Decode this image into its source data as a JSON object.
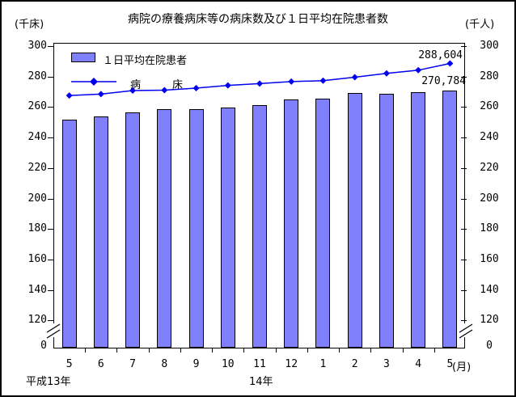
{
  "header": {
    "title": "病院の療養病床等の病床数及び１日平均在院患者数",
    "left_unit": "(千床)",
    "right_unit": "(千人)"
  },
  "legend": {
    "bar_label": "１日平均在院患者",
    "line_label": "病　　　床"
  },
  "chart_data": {
    "type": "bar+line combo",
    "title": "病院の療養病床等の病床数及び１日平均在院患者数",
    "categories": [
      "5",
      "6",
      "7",
      "8",
      "9",
      "10",
      "11",
      "12",
      "1",
      "2",
      "3",
      "4",
      "5"
    ],
    "series": [
      {
        "name": "１日平均在院患者",
        "type": "bar",
        "unit": "千人",
        "values": [
          251.5,
          254.0,
          256.7,
          258.8,
          258.8,
          259.7,
          261.4,
          264.8,
          265.3,
          269.0,
          268.7,
          269.8,
          270.784
        ]
      },
      {
        "name": "病床",
        "type": "line",
        "unit": "千床",
        "values": [
          267.6,
          268.5,
          270.8,
          271.1,
          272.4,
          274.2,
          275.4,
          276.7,
          277.3,
          279.6,
          282.1,
          284.2,
          288.604
        ]
      }
    ],
    "y_axis": {
      "ticks": [
        300,
        280,
        260,
        240,
        220,
        200,
        180,
        160,
        140,
        120
      ],
      "zero": "0",
      "axis_break_between": [
        0,
        120
      ],
      "left_unit": "千床",
      "right_unit": "千人"
    },
    "x_axis": {
      "unit_label": "(月)",
      "era_left": "平成13年",
      "era_right": "14年"
    },
    "annotations": [
      {
        "text": "288,604",
        "series": "病床",
        "at_category_index": 12
      },
      {
        "text": "270,784",
        "series": "１日平均在院患者",
        "at_category_index": 12
      }
    ],
    "colors": {
      "bar_fill": "#8080fc",
      "line": "#0000ee",
      "axis": "#000000"
    },
    "grid": "none",
    "legend_position": "inside-top-left"
  }
}
